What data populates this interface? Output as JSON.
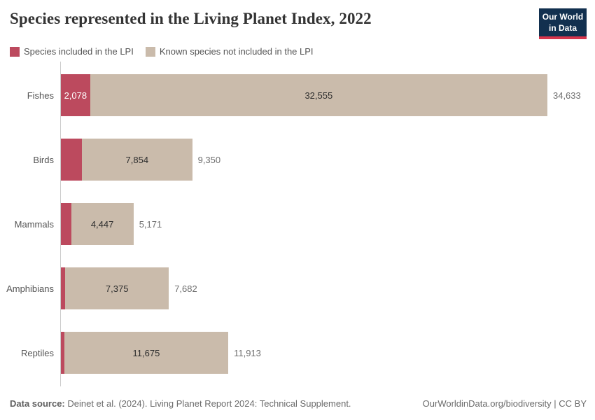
{
  "title": "Species represented in the Living Planet Index, 2022",
  "logo": {
    "line1": "Our World",
    "line2": "in Data"
  },
  "legend": [
    {
      "label": "Species included in the LPI",
      "color": "#bc4a5e"
    },
    {
      "label": "Known species not included in the LPI",
      "color": "#cabbab"
    }
  ],
  "chart_data": {
    "type": "bar",
    "orientation": "horizontal",
    "stacked": true,
    "grid": false,
    "xlim": [
      0,
      34633
    ],
    "categories": [
      "Fishes",
      "Birds",
      "Mammals",
      "Amphibians",
      "Reptiles"
    ],
    "series": [
      {
        "name": "Species included in the LPI",
        "color": "#bc4a5e",
        "values": [
          2078,
          1496,
          724,
          307,
          238
        ]
      },
      {
        "name": "Known species not included in the LPI",
        "color": "#cabbab",
        "values": [
          32555,
          7854,
          4447,
          7375,
          11675
        ]
      }
    ],
    "totals": [
      34633,
      9350,
      5171,
      7682,
      11913
    ],
    "lpi_segment_labels": [
      "2,078",
      "",
      "",
      "",
      ""
    ],
    "known_segment_labels": [
      "32,555",
      "7,854",
      "4,447",
      "7,375",
      "11,675"
    ],
    "total_labels": [
      "34,633",
      "9,350",
      "5,171",
      "7,682",
      "11,913"
    ],
    "legend_position": "top"
  },
  "footer": {
    "source_prefix": "Data source:",
    "source_text": " Deinet et al. (2024). Living Planet Report 2024: Technical Supplement.",
    "credit_url": "OurWorldinData.org/biodiversity",
    "credit_separator": " | ",
    "credit_license": "CC BY"
  },
  "colors": {
    "lpi": "#bc4a5e",
    "known": "#cabbab",
    "axis": "#cccccc",
    "title": "#333333",
    "category_label": "#555555",
    "in_bar_label": "#2d2d2d",
    "in_bar_label_on_red": "#ffffff",
    "total_label": "#6e6e6e",
    "footer_text": "#6b6b6b",
    "logo_bg": "#12304f",
    "logo_strip": "#d7354c"
  }
}
